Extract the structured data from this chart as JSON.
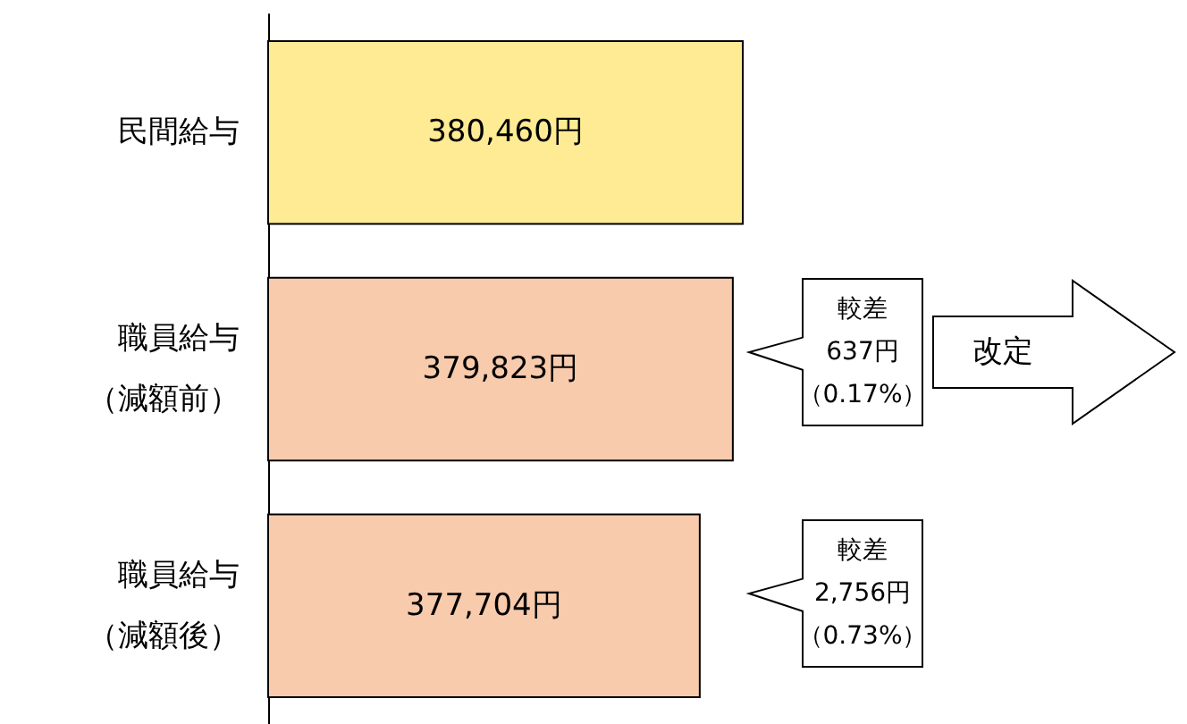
{
  "chart_data": {
    "type": "bar",
    "orientation": "horizontal",
    "categories": [
      "民間給与",
      "職員給与（減額前）",
      "職員給与（減額後）"
    ],
    "values": [
      380460,
      379823,
      377704
    ],
    "colors": [
      "#ffeb94",
      "#f8cbad",
      "#f8cbad"
    ],
    "value_labels": [
      "380,460円",
      "379,823円",
      "377,704円"
    ],
    "xlim": [
      350000,
      380460
    ],
    "tick_labels": "y",
    "grid": false,
    "annotations": [
      "較差",
      "637円",
      "（0.17%）",
      "較差",
      "2,756円",
      "（0.73%）",
      "改定"
    ]
  }
}
